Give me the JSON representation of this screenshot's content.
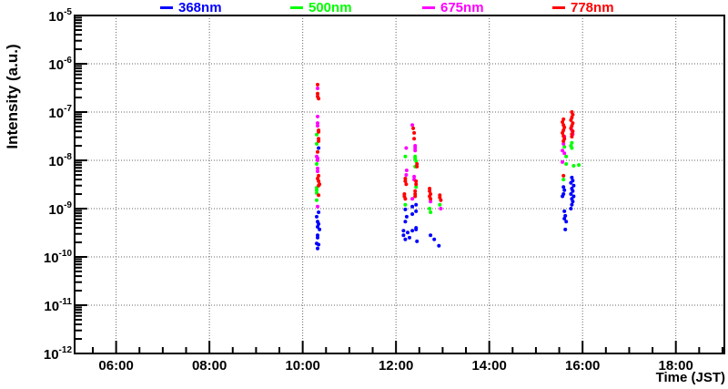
{
  "figure": {
    "background": "#ffffff",
    "frame_color": "#000000",
    "grid_color": "#666666"
  },
  "axes": {
    "x": {
      "title": "Time (JST)",
      "min_hours": 5.11,
      "max_hours": 19.04,
      "major_ticks": [
        {
          "hours": 6,
          "label": "06:00"
        },
        {
          "hours": 8,
          "label": "08:00"
        },
        {
          "hours": 10,
          "label": "10:00"
        },
        {
          "hours": 12,
          "label": "12:00"
        },
        {
          "hours": 14,
          "label": "14:00"
        },
        {
          "hours": 16,
          "label": "16:00"
        },
        {
          "hours": 18,
          "label": "18:00"
        }
      ],
      "minor_tick_step_hours": 0.5,
      "grid": true
    },
    "y": {
      "title": "Intensity (a.u.)",
      "scale": "log",
      "min": 1e-12,
      "max": 1e-05,
      "major_tick_exponents": [
        -5,
        -6,
        -7,
        -8,
        -9,
        -10,
        -11,
        -12
      ],
      "grid": true
    }
  },
  "legend": {
    "position": "top",
    "items": [
      {
        "label": "368nm",
        "color": "#0000ff"
      },
      {
        "label": "500nm",
        "color": "#00ff00"
      },
      {
        "label": "675nm",
        "color": "#ff00ff"
      },
      {
        "label": "778nm",
        "color": "#ff0000"
      }
    ]
  },
  "chart_data": {
    "type": "scatter",
    "title": "",
    "xlabel": "Time (JST)",
    "ylabel": "Intensity (a.u.)",
    "x_unit": "decimal_hours_JST",
    "xlim_hours": [
      5.11,
      19.04
    ],
    "ylim": [
      1e-12,
      1e-05
    ],
    "y_scale": "log",
    "grid": true,
    "legend_position": "top",
    "marker": "filled_circle",
    "series": [
      {
        "name": "368nm",
        "color": "#0000ff",
        "points": [
          [
            10.34,
            1.8e-08
          ],
          [
            10.34,
            8.4e-10
          ],
          [
            10.3,
            6.8e-10
          ],
          [
            10.32,
            5.4e-10
          ],
          [
            10.34,
            4.8e-10
          ],
          [
            10.32,
            4.2e-10
          ],
          [
            10.36,
            3.7e-10
          ],
          [
            10.32,
            2.8e-10
          ],
          [
            10.32,
            2.5e-10
          ],
          [
            10.3,
            1.9e-10
          ],
          [
            10.34,
            1.8e-10
          ],
          [
            10.32,
            1.5e-10
          ],
          [
            12.43,
            1.2e-09
          ],
          [
            12.35,
            1.1e-09
          ],
          [
            12.2,
            9.6e-10
          ],
          [
            12.43,
            8.8e-10
          ],
          [
            12.35,
            7.7e-10
          ],
          [
            12.23,
            6.8e-10
          ],
          [
            12.2,
            5.4e-10
          ],
          [
            12.43,
            4e-10
          ],
          [
            12.16,
            3.5e-10
          ],
          [
            12.25,
            3.2e-10
          ],
          [
            12.35,
            3.5e-10
          ],
          [
            12.43,
            3.7e-10
          ],
          [
            12.16,
            2.8e-10
          ],
          [
            12.2,
            2.3e-10
          ],
          [
            12.29,
            2.5e-10
          ],
          [
            12.45,
            2.1e-10
          ],
          [
            12.74,
            2.8e-10
          ],
          [
            12.82,
            2.3e-10
          ],
          [
            12.92,
            1.7e-10
          ],
          [
            15.77,
            4.4e-09
          ],
          [
            15.79,
            3.8e-09
          ],
          [
            15.75,
            3.4e-09
          ],
          [
            15.81,
            3e-09
          ],
          [
            15.77,
            2.6e-09
          ],
          [
            15.79,
            2.3e-09
          ],
          [
            15.75,
            2e-09
          ],
          [
            15.81,
            1.8e-09
          ],
          [
            15.77,
            1.6e-09
          ],
          [
            15.79,
            1.4e-09
          ],
          [
            15.77,
            1.2e-09
          ],
          [
            15.75,
            1e-09
          ],
          [
            15.59,
            2.8e-09
          ],
          [
            15.61,
            2.4e-09
          ],
          [
            15.59,
            2e-09
          ],
          [
            15.57,
            1.8e-09
          ],
          [
            15.61,
            8.8e-10
          ],
          [
            15.63,
            7.1e-10
          ],
          [
            15.61,
            6.2e-10
          ],
          [
            15.65,
            5.4e-10
          ],
          [
            15.63,
            3.7e-10
          ]
        ]
      },
      {
        "name": "500nm",
        "color": "#00ff00",
        "points": [
          [
            10.3,
            3.4e-08
          ],
          [
            10.3,
            2.2e-08
          ],
          [
            10.3,
            8.4e-09
          ],
          [
            10.3,
            2.7e-09
          ],
          [
            10.3,
            2.4e-09
          ],
          [
            10.3,
            2.1e-09
          ],
          [
            10.3,
            1.5e-09
          ],
          [
            12.2,
            1.2e-08
          ],
          [
            12.41,
            1.2e-08
          ],
          [
            12.41,
            1.1e-08
          ],
          [
            12.43,
            9.6e-09
          ],
          [
            12.41,
            7.4e-09
          ],
          [
            12.43,
            2.8e-09
          ],
          [
            12.2,
            1.2e-09
          ],
          [
            12.72,
            1e-09
          ],
          [
            12.74,
            8.4e-10
          ],
          [
            12.94,
            1.2e-09
          ],
          [
            15.77,
            2.3e-08
          ],
          [
            15.75,
            2e-08
          ],
          [
            15.61,
            1.9e-08
          ],
          [
            15.77,
            1.8e-08
          ],
          [
            15.65,
            1.2e-08
          ],
          [
            15.65,
            8.4e-09
          ],
          [
            15.81,
            7.7e-09
          ],
          [
            15.92,
            8e-09
          ],
          [
            15.59,
            4e-09
          ]
        ]
      },
      {
        "name": "675nm",
        "color": "#ff00ff",
        "points": [
          [
            10.32,
            3.1e-07
          ],
          [
            10.32,
            8.1e-08
          ],
          [
            10.32,
            5.9e-08
          ],
          [
            10.32,
            5.2e-08
          ],
          [
            10.3,
            1.2e-08
          ],
          [
            10.32,
            1.1e-08
          ],
          [
            10.32,
            1e-08
          ],
          [
            10.32,
            6.8e-09
          ],
          [
            10.32,
            5.9e-09
          ],
          [
            10.32,
            1.1e-09
          ],
          [
            12.35,
            5.4e-08
          ],
          [
            12.41,
            2e-08
          ],
          [
            12.41,
            1.8e-08
          ],
          [
            12.41,
            1.6e-08
          ],
          [
            12.22,
            1.8e-08
          ],
          [
            12.23,
            6.2e-09
          ],
          [
            12.22,
            5e-09
          ],
          [
            12.39,
            4.6e-09
          ],
          [
            12.39,
            4e-09
          ],
          [
            12.35,
            1.6e-09
          ],
          [
            12.74,
            1.4e-09
          ],
          [
            12.96,
            1e-09
          ],
          [
            15.61,
            3.1e-08
          ],
          [
            15.59,
            2.2e-08
          ],
          [
            15.77,
            4.2e-08
          ],
          [
            15.79,
            3.5e-08
          ],
          [
            15.57,
            1.6e-08
          ],
          [
            15.61,
            1.4e-08
          ],
          [
            15.57,
            9.2e-09
          ]
        ]
      },
      {
        "name": "778nm",
        "color": "#ff0000",
        "points": [
          [
            10.32,
            3.7e-07
          ],
          [
            10.32,
            2.4e-07
          ],
          [
            10.32,
            2.1e-07
          ],
          [
            10.34,
            1.9e-07
          ],
          [
            10.34,
            4.2e-08
          ],
          [
            10.34,
            3.9e-08
          ],
          [
            10.34,
            2.8e-08
          ],
          [
            10.34,
            2.5e-08
          ],
          [
            10.32,
            1.5e-08
          ],
          [
            10.34,
            4.8e-09
          ],
          [
            10.32,
            4.2e-09
          ],
          [
            10.34,
            3.7e-09
          ],
          [
            10.36,
            3.2e-09
          ],
          [
            10.34,
            3e-09
          ],
          [
            10.34,
            1.9e-09
          ],
          [
            12.37,
            4.6e-08
          ],
          [
            12.39,
            3.7e-08
          ],
          [
            12.39,
            2.8e-08
          ],
          [
            12.45,
            8.4e-09
          ],
          [
            12.45,
            7.4e-09
          ],
          [
            12.2,
            4.2e-09
          ],
          [
            12.2,
            3.7e-09
          ],
          [
            12.22,
            3.2e-09
          ],
          [
            12.43,
            3.7e-09
          ],
          [
            12.43,
            3.2e-09
          ],
          [
            12.41,
            2.3e-09
          ],
          [
            12.41,
            2e-09
          ],
          [
            12.41,
            1.8e-09
          ],
          [
            12.18,
            2e-09
          ],
          [
            12.18,
            1.8e-09
          ],
          [
            12.2,
            1.6e-09
          ],
          [
            12.72,
            2.6e-09
          ],
          [
            12.72,
            2.3e-09
          ],
          [
            12.74,
            2e-09
          ],
          [
            12.72,
            1.8e-09
          ],
          [
            12.74,
            1.6e-09
          ],
          [
            12.94,
            1.9e-09
          ],
          [
            12.94,
            1.7e-09
          ],
          [
            12.96,
            1.5e-09
          ],
          [
            15.59,
            7.1e-08
          ],
          [
            15.57,
            6.2e-08
          ],
          [
            15.59,
            5.4e-08
          ],
          [
            15.61,
            4.8e-08
          ],
          [
            15.59,
            4.2e-08
          ],
          [
            15.57,
            3.7e-08
          ],
          [
            15.59,
            3.2e-08
          ],
          [
            15.61,
            2.8e-08
          ],
          [
            15.59,
            2.5e-08
          ],
          [
            15.77,
            1e-07
          ],
          [
            15.79,
            8.8e-08
          ],
          [
            15.77,
            7.7e-08
          ],
          [
            15.75,
            6.8e-08
          ],
          [
            15.79,
            5.9e-08
          ],
          [
            15.77,
            5.2e-08
          ],
          [
            15.75,
            4.6e-08
          ],
          [
            15.79,
            4e-08
          ],
          [
            15.77,
            3.5e-08
          ],
          [
            15.77,
            3.1e-08
          ],
          [
            15.59,
            4.8e-09
          ]
        ]
      }
    ]
  }
}
